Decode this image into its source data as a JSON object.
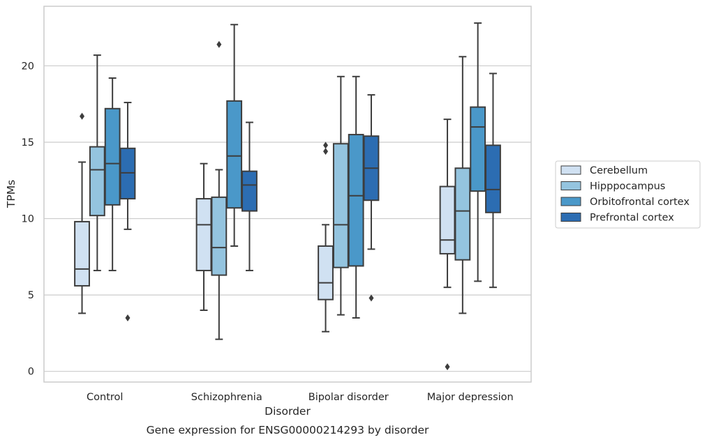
{
  "chart_data": {
    "type": "box",
    "caption": "Gene expression for ENSG00000214293 by disorder",
    "xlabel": "Disorder",
    "ylabel": "TPMs",
    "ylim": [
      -0.7,
      23.9
    ],
    "yticks": [
      0,
      5,
      10,
      15,
      20
    ],
    "grid": "horizontal",
    "legend_position": "right",
    "categories": [
      "Control",
      "Schizophrenia",
      "Bipolar disorder",
      "Major depression"
    ],
    "series": [
      {
        "name": "Cerebellum",
        "color": "#d0e1f2",
        "boxes": [
          {
            "whisker_low": 3.8,
            "q1": 5.6,
            "median": 6.7,
            "q3": 9.8,
            "whisker_high": 13.7,
            "outliers": [
              16.7
            ]
          },
          {
            "whisker_low": 4.0,
            "q1": 6.6,
            "median": 9.6,
            "q3": 11.3,
            "whisker_high": 13.6,
            "outliers": []
          },
          {
            "whisker_low": 2.6,
            "q1": 4.7,
            "median": 5.8,
            "q3": 8.2,
            "whisker_high": 9.6,
            "outliers": [
              14.4,
              14.8
            ]
          },
          {
            "whisker_low": 5.5,
            "q1": 7.7,
            "median": 8.6,
            "q3": 12.1,
            "whisker_high": 16.5,
            "outliers": [
              0.3
            ]
          }
        ]
      },
      {
        "name": "Hipppocampus",
        "color": "#94c4df",
        "boxes": [
          {
            "whisker_low": 6.6,
            "q1": 10.2,
            "median": 13.2,
            "q3": 14.7,
            "whisker_high": 20.7,
            "outliers": []
          },
          {
            "whisker_low": 2.1,
            "q1": 6.3,
            "median": 8.1,
            "q3": 11.4,
            "whisker_high": 13.2,
            "outliers": [
              21.4
            ]
          },
          {
            "whisker_low": 3.7,
            "q1": 6.8,
            "median": 9.6,
            "q3": 14.9,
            "whisker_high": 19.3,
            "outliers": []
          },
          {
            "whisker_low": 3.8,
            "q1": 7.3,
            "median": 10.5,
            "q3": 13.3,
            "whisker_high": 20.6,
            "outliers": []
          }
        ]
      },
      {
        "name": "Orbitofrontal cortex",
        "color": "#4a98c9",
        "boxes": [
          {
            "whisker_low": 6.6,
            "q1": 10.9,
            "median": 13.6,
            "q3": 17.2,
            "whisker_high": 19.2,
            "outliers": []
          },
          {
            "whisker_low": 8.2,
            "q1": 10.7,
            "median": 14.1,
            "q3": 17.7,
            "whisker_high": 22.7,
            "outliers": []
          },
          {
            "whisker_low": 3.5,
            "q1": 6.9,
            "median": 11.5,
            "q3": 15.5,
            "whisker_high": 19.3,
            "outliers": []
          },
          {
            "whisker_low": 5.9,
            "q1": 11.8,
            "median": 16.0,
            "q3": 17.3,
            "whisker_high": 22.8,
            "outliers": []
          }
        ]
      },
      {
        "name": "Prefrontal cortex",
        "color": "#2c6db2",
        "boxes": [
          {
            "whisker_low": 9.3,
            "q1": 11.3,
            "median": 13.0,
            "q3": 14.6,
            "whisker_high": 17.6,
            "outliers": [
              3.5
            ]
          },
          {
            "whisker_low": 6.6,
            "q1": 10.5,
            "median": 12.2,
            "q3": 13.1,
            "whisker_high": 16.3,
            "outliers": []
          },
          {
            "whisker_low": 8.0,
            "q1": 11.2,
            "median": 13.3,
            "q3": 15.4,
            "whisker_high": 18.1,
            "outliers": [
              4.8
            ]
          },
          {
            "whisker_low": 5.5,
            "q1": 10.4,
            "median": 11.9,
            "q3": 14.8,
            "whisker_high": 19.5,
            "outliers": []
          }
        ]
      }
    ]
  }
}
